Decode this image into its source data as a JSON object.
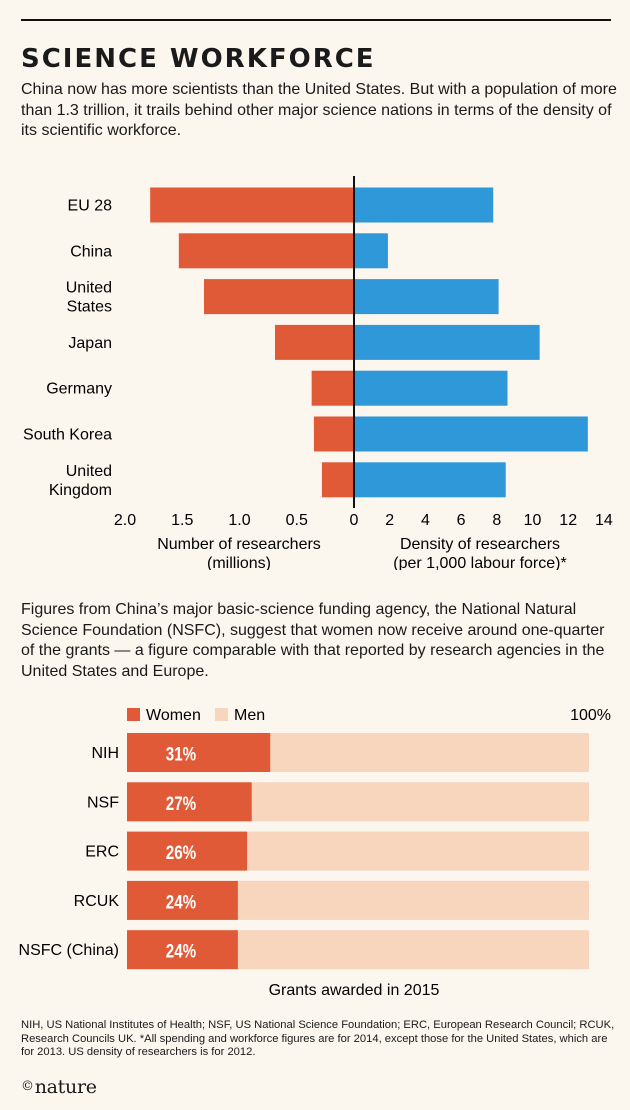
{
  "header": {
    "title": "SCIENCE WORKFORCE",
    "intro": "China now has more scientists than the United States. But with a population of more than 1.3 trillion, it trails behind other major science nations in terms of the density of its scientific workforce."
  },
  "section2": {
    "intro": "Figures from China’s major basic-science funding agency, the National Natural Science Foundation (NSFC), suggest that women now receive around one-quarter of the grants — a figure comparable with that reported by research agencies in the United States and Europe."
  },
  "footnote": "NIH, US National Institutes of Health; NSF, US National Science Foundation; ERC, European Research Council; RCUK, Research Councils UK. *All spending and workforce figures are for 2014, except those for the United States, which are for 2013. US density of researchers is for 2012.",
  "logo": {
    "symbol": "©",
    "text": "nature"
  },
  "colors": {
    "red": "#e15a38",
    "blue": "#2f98d9",
    "men": "#f8d5bd",
    "background": "#fbf6ee"
  },
  "chart_data": [
    {
      "type": "bar",
      "orientation": "horizontal-butterfly",
      "categories": [
        [
          "EU 28"
        ],
        [
          "China"
        ],
        [
          "United",
          "States"
        ],
        [
          "Japan"
        ],
        [
          "Germany"
        ],
        [
          "South Korea"
        ],
        [
          "United",
          "Kingdom"
        ]
      ],
      "series": [
        {
          "name": "",
          "values": [
            1.78,
            1.53,
            1.31,
            0.69,
            0.37,
            0.35,
            0.28
          ],
          "xlim": [
            0,
            2.0
          ]
        },
        {
          "name": "",
          "values": [
            7.8,
            1.9,
            8.1,
            10.4,
            8.6,
            13.1,
            8.5
          ],
          "xlim": [
            0,
            14
          ]
        }
      ],
      "left_ticks": [
        "2.0",
        "1.5",
        "1.0",
        "0.5",
        "0"
      ],
      "left_tick_values": [
        2.0,
        1.5,
        1.0,
        0.5,
        0
      ],
      "right_ticks": [
        "2",
        "4",
        "6",
        "8",
        "10",
        "12",
        "14"
      ],
      "right_tick_values": [
        2,
        4,
        6,
        8,
        10,
        12,
        14
      ],
      "left_xlabel": [
        "Number of researchers",
        "(millions)"
      ],
      "right_xlabel": [
        "Density of researchers",
        "(per 1,000 labour force)*"
      ]
    },
    {
      "type": "bar",
      "orientation": "horizontal-stacked-100",
      "categories": [
        "NIH",
        "NSF",
        "ERC",
        "RCUK",
        "NSFC (China)"
      ],
      "series": [
        {
          "name": "Women",
          "values": [
            31,
            27,
            26,
            24,
            24
          ],
          "labels": [
            "31%",
            "27%",
            "26%",
            "24%",
            "24%"
          ]
        },
        {
          "name": "Men",
          "values": [
            69,
            73,
            74,
            76,
            76
          ]
        }
      ],
      "xlim": [
        0,
        100
      ],
      "max_label": "100%",
      "xlabel": "Grants awarded in 2015",
      "legend": "top-left"
    }
  ]
}
